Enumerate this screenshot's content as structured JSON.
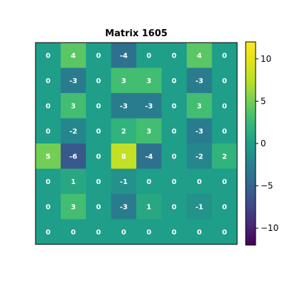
{
  "chart_data": {
    "type": "heatmap",
    "title": "Matrix 1605",
    "xlabel": "",
    "ylabel": "",
    "grid": false,
    "colormap": "viridis",
    "vmin": -12,
    "vmax": 12,
    "colorbar_ticks": [
      10,
      5,
      0,
      -5,
      -10
    ],
    "colorbar_tick_labels": [
      "10",
      "5",
      "0",
      "−5",
      "−10"
    ],
    "matrix": [
      [
        0,
        4,
        0,
        -4,
        0,
        0,
        4,
        0
      ],
      [
        0,
        -3,
        0,
        3,
        3,
        0,
        -3,
        0
      ],
      [
        0,
        3,
        0,
        -3,
        -3,
        0,
        3,
        0
      ],
      [
        0,
        -2,
        0,
        2,
        3,
        0,
        -3,
        0
      ],
      [
        5,
        -6,
        0,
        8,
        -4,
        0,
        -2,
        2
      ],
      [
        0,
        1,
        0,
        -1,
        0,
        0,
        0,
        0
      ],
      [
        0,
        3,
        0,
        -3,
        1,
        0,
        -1,
        0
      ],
      [
        0,
        0,
        0,
        0,
        0,
        0,
        0,
        0
      ]
    ]
  }
}
